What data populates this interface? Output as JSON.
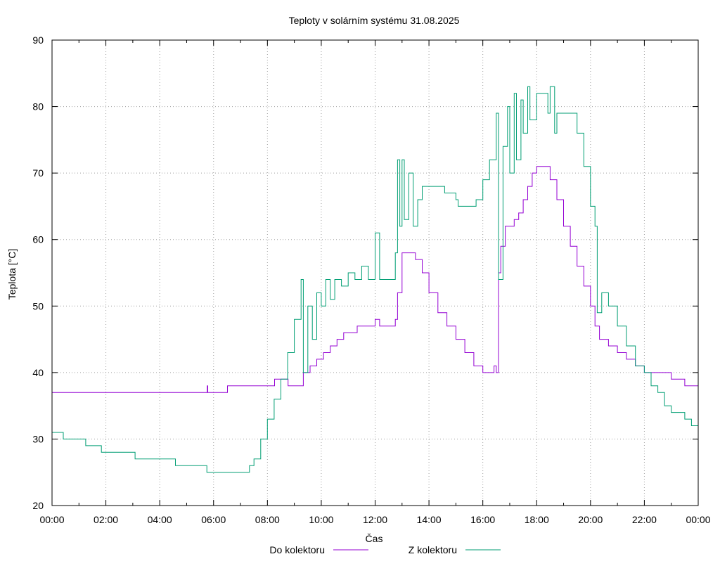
{
  "chart_data": {
    "type": "line",
    "title": "Teploty v solárním systému 31.08.2025",
    "xlabel": "Čas",
    "ylabel": "Teplota [°C]",
    "xlim": [
      "00:00",
      "24:00"
    ],
    "ylim": [
      20,
      90
    ],
    "x_ticks": [
      "00:00",
      "02:00",
      "04:00",
      "06:00",
      "08:00",
      "10:00",
      "12:00",
      "14:00",
      "16:00",
      "18:00",
      "20:00",
      "22:00",
      "00:00"
    ],
    "y_ticks": [
      20,
      30,
      40,
      50,
      60,
      70,
      80,
      90
    ],
    "grid": true,
    "legend_position": "bottom",
    "series": [
      {
        "name": "Do kolektoru",
        "color": "#9400d3",
        "points": [
          [
            "00:00",
            37
          ],
          [
            "05:45",
            37
          ],
          [
            "05:46",
            38
          ],
          [
            "05:47",
            37
          ],
          [
            "06:30",
            37
          ],
          [
            "06:31",
            38
          ],
          [
            "08:15",
            38
          ],
          [
            "08:16",
            39
          ],
          [
            "08:45",
            39
          ],
          [
            "08:46",
            38
          ],
          [
            "09:15",
            38
          ],
          [
            "09:20",
            40
          ],
          [
            "09:35",
            41
          ],
          [
            "09:50",
            42
          ],
          [
            "10:05",
            43
          ],
          [
            "10:20",
            44
          ],
          [
            "10:35",
            45
          ],
          [
            "10:50",
            46
          ],
          [
            "11:15",
            46
          ],
          [
            "11:20",
            47
          ],
          [
            "11:55",
            47
          ],
          [
            "12:00",
            48
          ],
          [
            "12:10",
            47
          ],
          [
            "12:40",
            47
          ],
          [
            "12:45",
            48
          ],
          [
            "12:50",
            52
          ],
          [
            "13:00",
            58
          ],
          [
            "13:20",
            58
          ],
          [
            "13:30",
            57
          ],
          [
            "13:45",
            55
          ],
          [
            "14:00",
            52
          ],
          [
            "14:20",
            49
          ],
          [
            "14:40",
            47
          ],
          [
            "15:00",
            45
          ],
          [
            "15:20",
            43
          ],
          [
            "15:40",
            41
          ],
          [
            "16:00",
            40
          ],
          [
            "16:20",
            40
          ],
          [
            "16:25",
            41
          ],
          [
            "16:30",
            40
          ],
          [
            "16:35",
            55
          ],
          [
            "16:40",
            59
          ],
          [
            "16:50",
            62
          ],
          [
            "17:10",
            63
          ],
          [
            "17:20",
            64
          ],
          [
            "17:30",
            66
          ],
          [
            "17:40",
            68
          ],
          [
            "17:50",
            70
          ],
          [
            "18:00",
            71
          ],
          [
            "18:20",
            71
          ],
          [
            "18:30",
            69
          ],
          [
            "18:45",
            66
          ],
          [
            "19:00",
            62
          ],
          [
            "19:15",
            59
          ],
          [
            "19:30",
            56
          ],
          [
            "19:45",
            53
          ],
          [
            "20:00",
            50
          ],
          [
            "20:10",
            47
          ],
          [
            "20:20",
            45
          ],
          [
            "20:40",
            44
          ],
          [
            "21:00",
            43
          ],
          [
            "21:20",
            42
          ],
          [
            "21:40",
            41
          ],
          [
            "22:00",
            40
          ],
          [
            "22:30",
            40
          ],
          [
            "22:45",
            40
          ],
          [
            "23:00",
            39
          ],
          [
            "23:30",
            38
          ],
          [
            "24:00",
            38
          ]
        ]
      },
      {
        "name": "Z kolektoru",
        "color": "#009e73",
        "points": [
          [
            "00:00",
            31
          ],
          [
            "00:20",
            31
          ],
          [
            "00:25",
            30
          ],
          [
            "01:10",
            30
          ],
          [
            "01:15",
            29
          ],
          [
            "01:45",
            29
          ],
          [
            "01:50",
            28
          ],
          [
            "03:00",
            28
          ],
          [
            "03:05",
            27
          ],
          [
            "04:30",
            27
          ],
          [
            "04:35",
            26
          ],
          [
            "05:40",
            26
          ],
          [
            "05:45",
            25
          ],
          [
            "07:15",
            25
          ],
          [
            "07:20",
            26
          ],
          [
            "07:30",
            27
          ],
          [
            "07:45",
            30
          ],
          [
            "08:00",
            33
          ],
          [
            "08:15",
            36
          ],
          [
            "08:30",
            39
          ],
          [
            "08:45",
            43
          ],
          [
            "09:00",
            48
          ],
          [
            "09:15",
            54
          ],
          [
            "09:20",
            40
          ],
          [
            "09:30",
            50
          ],
          [
            "09:40",
            45
          ],
          [
            "09:50",
            52
          ],
          [
            "10:00",
            50
          ],
          [
            "10:10",
            54
          ],
          [
            "10:20",
            51
          ],
          [
            "10:30",
            54
          ],
          [
            "10:45",
            53
          ],
          [
            "11:00",
            55
          ],
          [
            "11:15",
            54
          ],
          [
            "11:30",
            56
          ],
          [
            "11:45",
            54
          ],
          [
            "12:00",
            61
          ],
          [
            "12:10",
            54
          ],
          [
            "12:40",
            54
          ],
          [
            "12:45",
            58
          ],
          [
            "12:50",
            72
          ],
          [
            "12:55",
            62
          ],
          [
            "13:00",
            72
          ],
          [
            "13:05",
            63
          ],
          [
            "13:15",
            70
          ],
          [
            "13:25",
            62
          ],
          [
            "13:35",
            66
          ],
          [
            "13:45",
            68
          ],
          [
            "14:30",
            68
          ],
          [
            "14:35",
            67
          ],
          [
            "15:00",
            66
          ],
          [
            "15:05",
            65
          ],
          [
            "15:40",
            65
          ],
          [
            "15:45",
            66
          ],
          [
            "16:00",
            69
          ],
          [
            "16:15",
            72
          ],
          [
            "16:30",
            79
          ],
          [
            "16:35",
            54
          ],
          [
            "16:45",
            74
          ],
          [
            "16:55",
            80
          ],
          [
            "17:00",
            70
          ],
          [
            "17:10",
            82
          ],
          [
            "17:15",
            72
          ],
          [
            "17:25",
            81
          ],
          [
            "17:30",
            76
          ],
          [
            "17:40",
            83
          ],
          [
            "17:45",
            78
          ],
          [
            "18:00",
            82
          ],
          [
            "18:20",
            82
          ],
          [
            "18:25",
            79
          ],
          [
            "18:30",
            83
          ],
          [
            "18:40",
            76
          ],
          [
            "18:45",
            79
          ],
          [
            "19:15",
            79
          ],
          [
            "19:30",
            76
          ],
          [
            "19:45",
            71
          ],
          [
            "20:00",
            65
          ],
          [
            "20:10",
            62
          ],
          [
            "20:15",
            49
          ],
          [
            "20:25",
            52
          ],
          [
            "20:40",
            50
          ],
          [
            "21:00",
            47
          ],
          [
            "21:20",
            44
          ],
          [
            "21:40",
            41
          ],
          [
            "22:00",
            40
          ],
          [
            "22:15",
            38
          ],
          [
            "22:30",
            37
          ],
          [
            "22:45",
            35
          ],
          [
            "23:00",
            34
          ],
          [
            "23:30",
            33
          ],
          [
            "23:45",
            32
          ],
          [
            "24:00",
            31
          ]
        ]
      }
    ]
  }
}
